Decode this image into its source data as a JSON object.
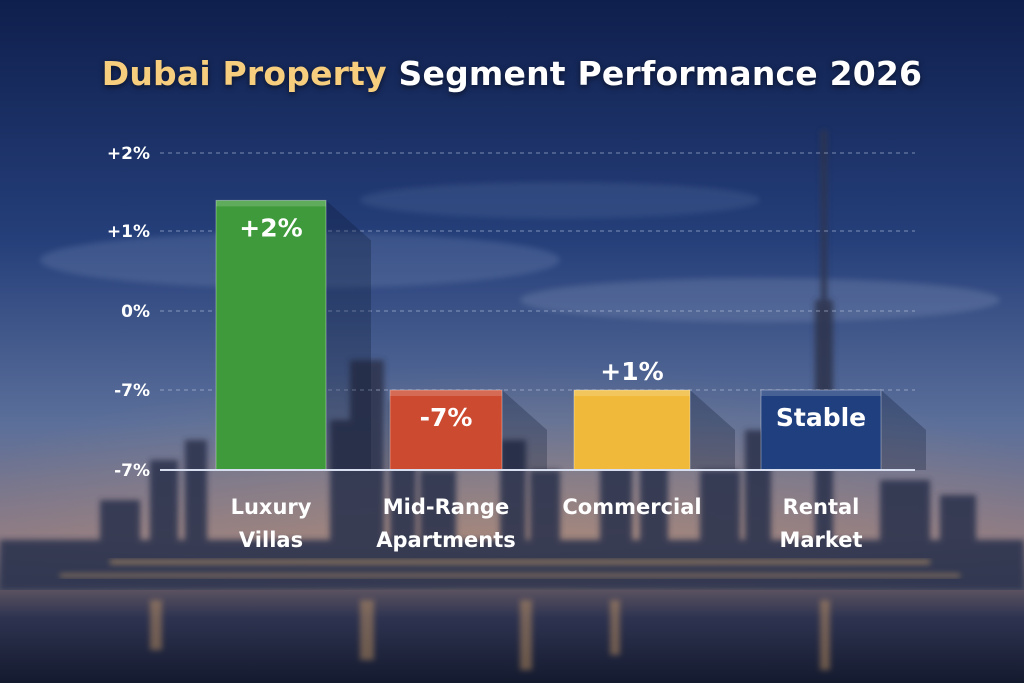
{
  "title": {
    "accent": "Dubai Property",
    "rest": "Segment Performance 2026"
  },
  "chart_data": {
    "type": "bar",
    "title": "Dubai Property Segment Performance 2026",
    "categories": [
      [
        "Luxury",
        "Villas"
      ],
      [
        "Mid-Range",
        "Apartments"
      ],
      [
        "Commercial"
      ],
      [
        "Rental",
        "Market"
      ]
    ],
    "y_tick_labels": [
      "+2%",
      "+1%",
      "0%",
      "-7%",
      "-7%"
    ],
    "bar_levels": [
      1.4,
      -1.0,
      -1.0,
      -1.0
    ],
    "data_labels": [
      "+2%",
      "-7%",
      "+1%",
      "Stable"
    ],
    "grid": true,
    "legend": "none",
    "colors": [
      "#3e9a3a",
      "#cc4a30",
      "#f0b93a",
      "#1f3f7e"
    ]
  }
}
